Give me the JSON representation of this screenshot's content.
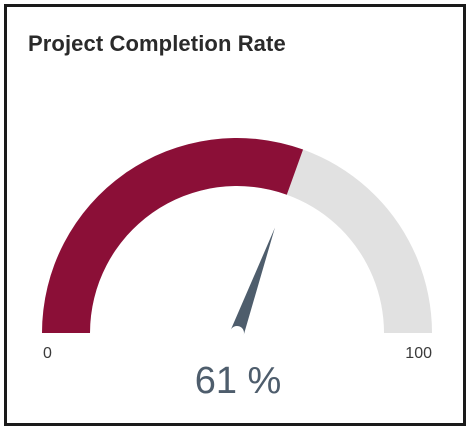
{
  "chart_data": {
    "type": "gauge",
    "title": "Project Completion Rate",
    "value": 61,
    "min": 0,
    "max": 100,
    "min_label": "0",
    "max_label": "100",
    "value_label": "61 %",
    "colors": {
      "value": "#8b0f37",
      "track": "#e1e1e1",
      "needle": "#4e5d6c",
      "value_text": "#4e5d6c",
      "tick_text": "#3a3a3a"
    }
  }
}
